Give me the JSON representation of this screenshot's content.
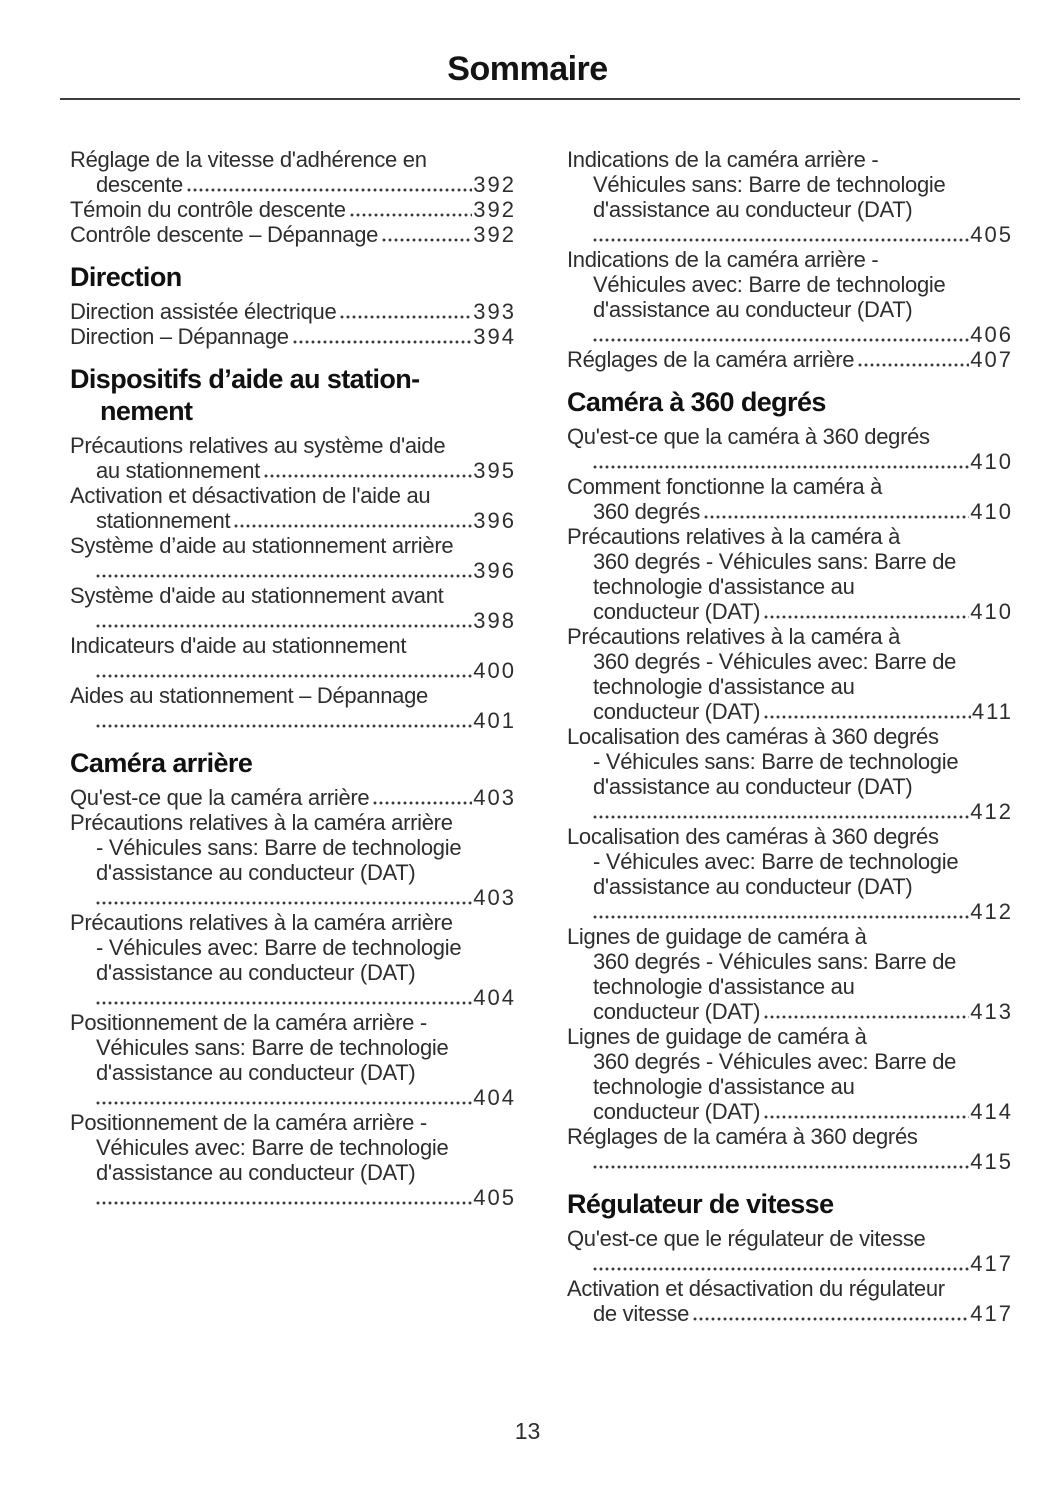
{
  "page": {
    "title": "Sommaire",
    "page_number": "13"
  },
  "toc": {
    "columns": [
      {
        "side": "left",
        "items": [
          {
            "type": "entry",
            "lines": [
              "Réglage de la vitesse d'adhérence en",
              "descente"
            ],
            "page": "392"
          },
          {
            "type": "entry",
            "lines": [
              "Témoin du contrôle descente"
            ],
            "page": "392"
          },
          {
            "type": "entry",
            "lines": [
              "Contrôle descente – Dépannage"
            ],
            "page": "392"
          },
          {
            "type": "heading",
            "lines": [
              "Direction"
            ]
          },
          {
            "type": "entry",
            "lines": [
              "Direction assistée électrique"
            ],
            "page": "393"
          },
          {
            "type": "entry",
            "lines": [
              "Direction – Dépannage"
            ],
            "page": "394"
          },
          {
            "type": "heading",
            "lines": [
              "Dispositifs d’aide au station-",
              "nement"
            ]
          },
          {
            "type": "entry",
            "lines": [
              "Précautions relatives au système d'aide",
              "au stationnement"
            ],
            "page": "395"
          },
          {
            "type": "entry",
            "lines": [
              "Activation et désactivation de l'aide au",
              "stationnement"
            ],
            "page": "396"
          },
          {
            "type": "entry",
            "lines": [
              "Système d’aide au stationnement arrière",
              ""
            ],
            "page": "396"
          },
          {
            "type": "entry",
            "lines": [
              "Système d'aide au stationnement avant",
              ""
            ],
            "page": "398"
          },
          {
            "type": "entry",
            "lines": [
              "Indicateurs d'aide au stationnement",
              ""
            ],
            "page": "400"
          },
          {
            "type": "entry",
            "lines": [
              "Aides au stationnement – Dépannage",
              ""
            ],
            "page": "401"
          },
          {
            "type": "heading",
            "lines": [
              "Caméra arrière"
            ]
          },
          {
            "type": "entry",
            "lines": [
              "Qu'est-ce que la caméra arrière"
            ],
            "page": "403"
          },
          {
            "type": "entry",
            "lines": [
              "Précautions relatives à la caméra arrière",
              "- Véhicules sans: Barre de technologie",
              "d'assistance au conducteur (DAT)",
              ""
            ],
            "page": "403"
          },
          {
            "type": "entry",
            "lines": [
              "Précautions relatives à la caméra arrière",
              "- Véhicules avec: Barre de technologie",
              "d'assistance au conducteur (DAT)",
              ""
            ],
            "page": "404"
          },
          {
            "type": "entry",
            "lines": [
              "Positionnement de la caméra arrière -",
              "Véhicules sans: Barre de technologie",
              "d'assistance au conducteur (DAT)",
              ""
            ],
            "page": "404"
          },
          {
            "type": "entry",
            "lines": [
              "Positionnement de la caméra arrière -",
              "Véhicules avec: Barre de technologie",
              "d'assistance au conducteur (DAT)",
              ""
            ],
            "page": "405"
          }
        ]
      },
      {
        "side": "right",
        "items": [
          {
            "type": "entry",
            "lines": [
              "Indications de la caméra arrière -",
              "Véhicules sans: Barre de technologie",
              "d'assistance au conducteur (DAT)",
              ""
            ],
            "page": "405"
          },
          {
            "type": "entry",
            "lines": [
              "Indications de la caméra arrière -",
              "Véhicules avec: Barre de technologie",
              "d'assistance au conducteur (DAT)",
              ""
            ],
            "page": "406"
          },
          {
            "type": "entry",
            "lines": [
              "Réglages de la caméra arrière"
            ],
            "page": "407"
          },
          {
            "type": "heading",
            "lines": [
              "Caméra à 360 degrés"
            ]
          },
          {
            "type": "entry",
            "lines": [
              "Qu'est-ce que la caméra à 360 degrés",
              ""
            ],
            "page": "410"
          },
          {
            "type": "entry",
            "lines": [
              "Comment fonctionne la caméra à",
              "360 degrés"
            ],
            "page": "410"
          },
          {
            "type": "entry",
            "lines": [
              "Précautions relatives à la caméra à",
              "360 degrés - Véhicules sans: Barre de",
              "technologie d'assistance au",
              "conducteur (DAT)"
            ],
            "page": "410"
          },
          {
            "type": "entry",
            "lines": [
              "Précautions relatives à la caméra à",
              "360 degrés - Véhicules avec: Barre de",
              "technologie d'assistance au",
              "conducteur (DAT)"
            ],
            "page": "411"
          },
          {
            "type": "entry",
            "lines": [
              "Localisation des caméras à 360 degrés",
              "- Véhicules sans: Barre de technologie",
              "d'assistance au conducteur (DAT)",
              ""
            ],
            "page": "412"
          },
          {
            "type": "entry",
            "lines": [
              "Localisation des caméras à 360 degrés",
              "- Véhicules avec: Barre de technologie",
              "d'assistance au conducteur (DAT)",
              ""
            ],
            "page": "412"
          },
          {
            "type": "entry",
            "lines": [
              "Lignes de guidage de caméra à",
              "360 degrés - Véhicules sans: Barre de",
              "technologie d'assistance au",
              "conducteur (DAT)"
            ],
            "page": "413"
          },
          {
            "type": "entry",
            "lines": [
              "Lignes de guidage de caméra à",
              "360 degrés - Véhicules avec: Barre de",
              "technologie d'assistance au",
              "conducteur (DAT)"
            ],
            "page": "414"
          },
          {
            "type": "entry",
            "lines": [
              "Réglages de la caméra à 360 degrés",
              ""
            ],
            "page": "415"
          },
          {
            "type": "heading",
            "lines": [
              "Régulateur de vitesse"
            ]
          },
          {
            "type": "entry",
            "lines": [
              "Qu'est-ce que le régulateur de vitesse",
              ""
            ],
            "page": "417"
          },
          {
            "type": "entry",
            "lines": [
              "Activation et désactivation du régulateur",
              "de vitesse"
            ],
            "page": "417"
          }
        ]
      }
    ]
  }
}
